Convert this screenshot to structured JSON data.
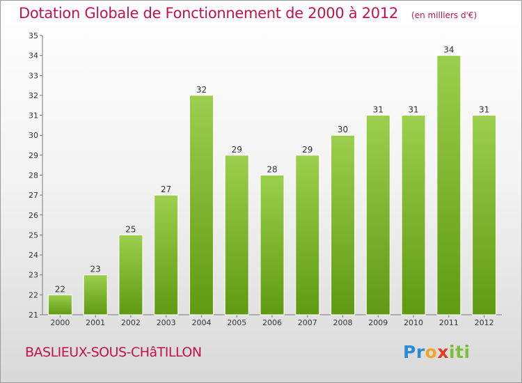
{
  "chart_data": {
    "type": "bar",
    "title": "Dotation Globale de Fonctionnement de 2000 à 2012",
    "subtitle": "(en milliers d'€)",
    "categories": [
      "2000",
      "2001",
      "2002",
      "2003",
      "2004",
      "2005",
      "2006",
      "2007",
      "2008",
      "2009",
      "2010",
      "2011",
      "2012"
    ],
    "values": [
      22,
      23,
      25,
      27,
      32,
      29,
      28,
      29,
      30,
      31,
      31,
      34,
      31
    ],
    "value_labels": [
      "22",
      "23",
      "25",
      "27",
      "32",
      "29",
      "28",
      "29",
      "30",
      "31",
      "31",
      "34",
      "31"
    ],
    "ylim": [
      21,
      35
    ],
    "yticks": [
      "21",
      "22",
      "23",
      "24",
      "25",
      "26",
      "27",
      "28",
      "29",
      "30",
      "31",
      "32",
      "33",
      "34",
      "35"
    ],
    "xlabel": "",
    "ylabel": "",
    "grid": false,
    "colors": {
      "bar_top": "#9ccf4d",
      "bar_bottom": "#5f9a12",
      "title": "#c0134a"
    }
  },
  "footer": {
    "commune": "BASLIEUX-SOUS-CHâTILLON"
  },
  "logo": {
    "text": "Proxiti",
    "letters": [
      "P",
      "r",
      "o",
      "x",
      "i",
      "t",
      "i"
    ]
  }
}
